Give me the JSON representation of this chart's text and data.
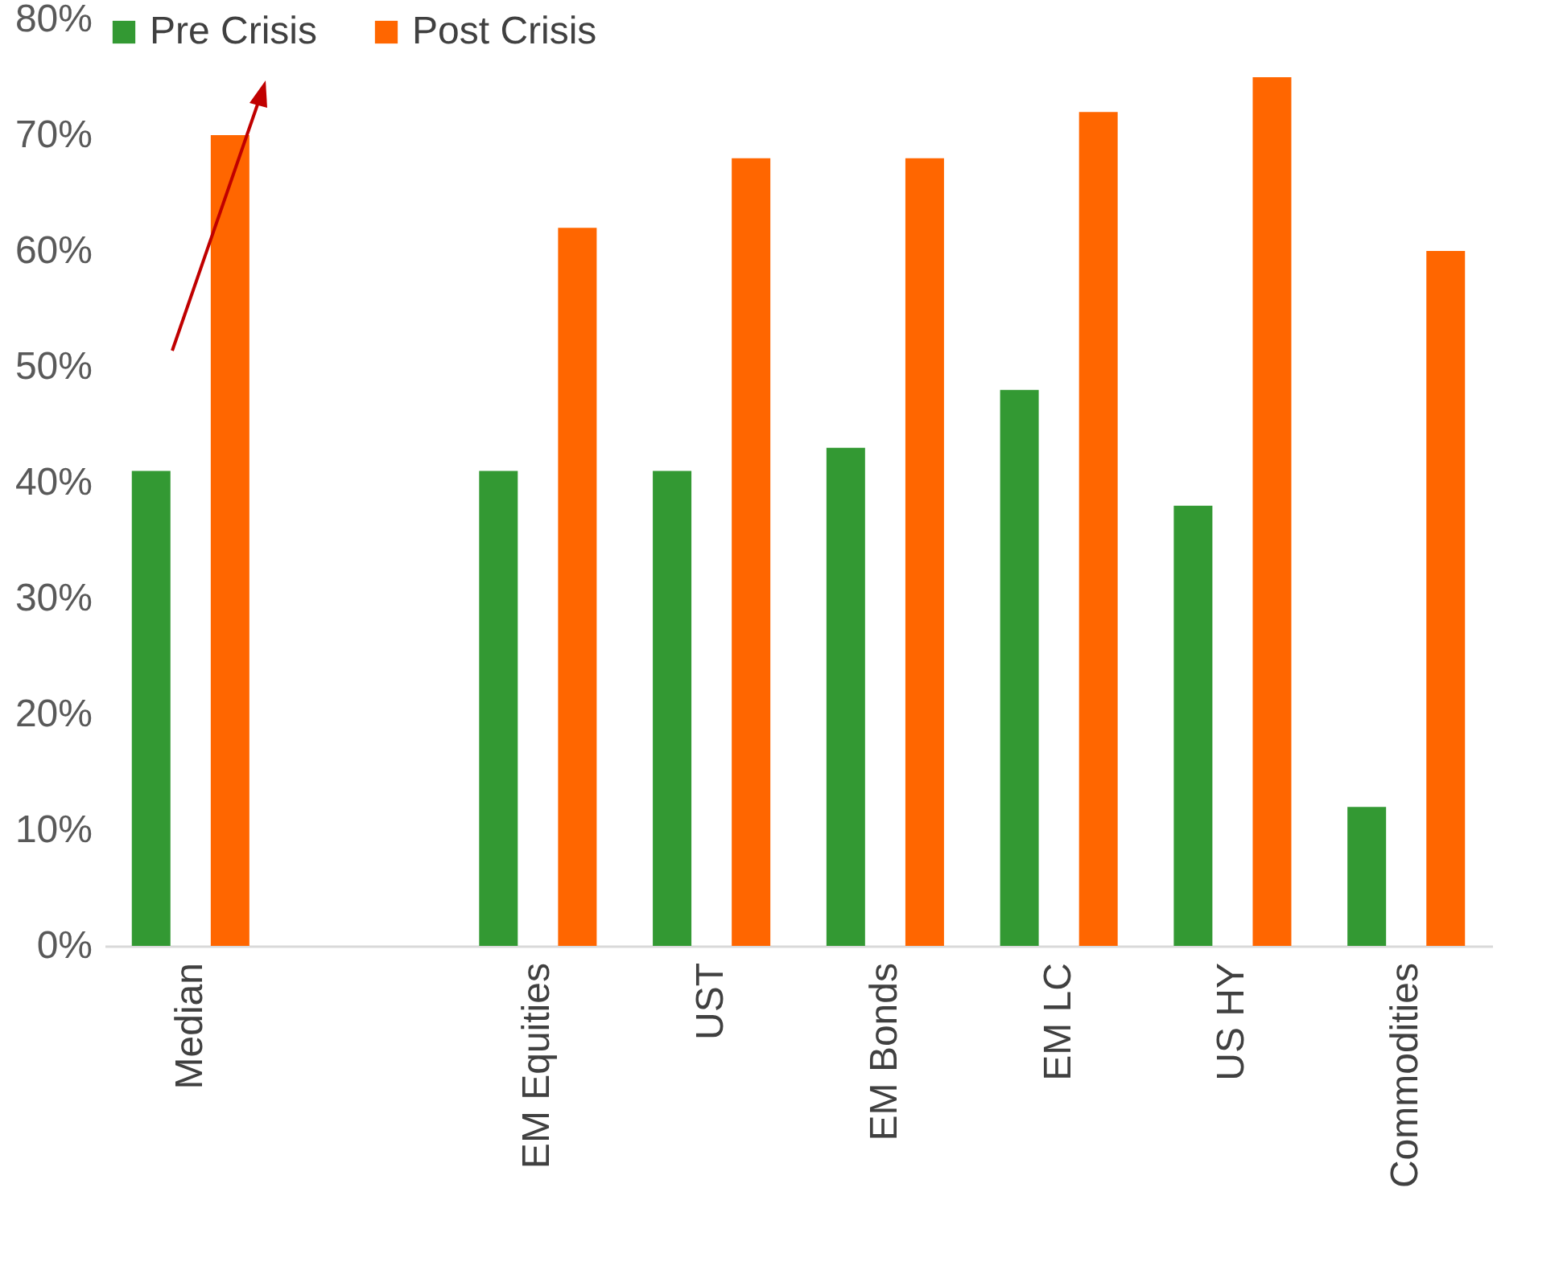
{
  "chart_data": {
    "type": "bar",
    "categories": [
      "Median",
      null,
      "EM Equities",
      "UST",
      "EM Bonds",
      "EM LC",
      "US HY",
      "Commodities"
    ],
    "series": [
      {
        "name": "Pre Crisis",
        "color": "#339933",
        "values": [
          41,
          null,
          41,
          41,
          43,
          48,
          38,
          12
        ]
      },
      {
        "name": "Post Crisis",
        "color": "#ff6600",
        "values": [
          70,
          null,
          62,
          68,
          68,
          72,
          75,
          60
        ]
      }
    ],
    "ylim": [
      0,
      80
    ],
    "yticks": [
      {
        "value": 0,
        "label": "0%"
      },
      {
        "value": 10,
        "label": "10%"
      },
      {
        "value": 20,
        "label": "20%"
      },
      {
        "value": 30,
        "label": "30%"
      },
      {
        "value": 40,
        "label": "40%"
      },
      {
        "value": 50,
        "label": "50%"
      },
      {
        "value": 60,
        "label": "60%"
      },
      {
        "value": 70,
        "label": "70%"
      },
      {
        "value": 80,
        "label": "80%"
      }
    ],
    "legend": "top",
    "grid": false
  }
}
